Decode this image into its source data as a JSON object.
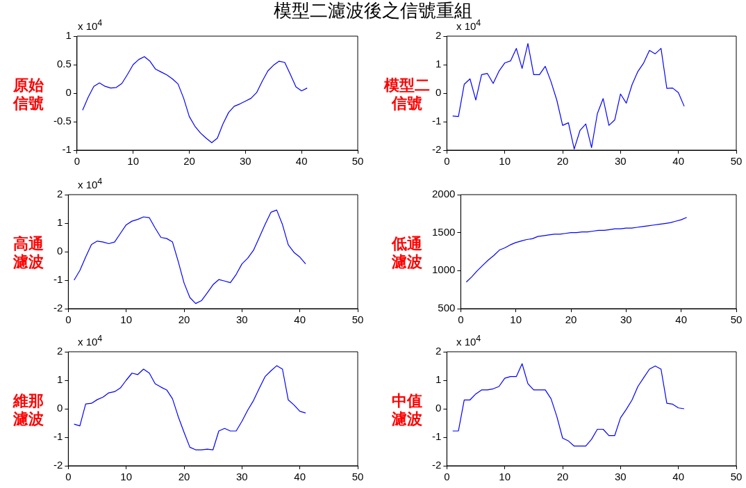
{
  "chart_data": [
    {
      "type": "line",
      "title": "模型二濾波後之信號重組",
      "ylabel": "原始信號",
      "annotations": [
        "x 10$^{4}$"
      ],
      "marker": "none",
      "legend": false,
      "x": [
        1,
        2,
        3,
        4,
        5,
        6,
        7,
        8,
        9,
        10,
        11,
        12,
        13,
        14,
        15,
        16,
        17,
        18,
        19,
        20,
        21,
        22,
        23,
        24,
        25,
        26,
        27,
        28,
        29,
        30,
        31,
        32,
        33,
        34,
        35,
        36,
        37,
        38,
        39,
        40,
        41
      ],
      "xlim": [
        0,
        50
      ],
      "xticks": [
        0,
        10,
        20,
        30,
        40,
        50
      ],
      "ylim": [
        -1,
        1
      ],
      "yticks": [
        -1,
        -0.5,
        0,
        0.5,
        1
      ],
      "series": [
        {
          "color": "#0000ff",
          "values": [
            -0.3,
            -0.07,
            0.12,
            0.18,
            0.12,
            0.09,
            0.1,
            0.17,
            0.33,
            0.5,
            0.59,
            0.64,
            0.56,
            0.42,
            0.37,
            0.32,
            0.25,
            0.16,
            -0.09,
            -0.41,
            -0.58,
            -0.7,
            -0.79,
            -0.87,
            -0.79,
            -0.54,
            -0.34,
            -0.23,
            -0.19,
            -0.14,
            -0.09,
            0.01,
            0.21,
            0.39,
            0.49,
            0.56,
            0.54,
            0.33,
            0.11,
            0.04,
            0.09
          ]
        }
      ]
    },
    {
      "type": "line",
      "ylabel": "模型二信號",
      "annotations": [
        "x 10$^{4}$"
      ],
      "marker": "none",
      "legend": false,
      "x": [
        1,
        2,
        3,
        4,
        5,
        6,
        7,
        8,
        9,
        10,
        11,
        12,
        13,
        14,
        15,
        16,
        17,
        18,
        19,
        20,
        21,
        22,
        23,
        24,
        25,
        26,
        27,
        28,
        29,
        30,
        31,
        32,
        33,
        34,
        35,
        36,
        37,
        38,
        39,
        40,
        41
      ],
      "xlim": [
        0,
        50
      ],
      "xticks": [
        0,
        10,
        20,
        30,
        40,
        50
      ],
      "ylim": [
        -2,
        2
      ],
      "yticks": [
        -2,
        -1,
        0,
        1,
        2
      ],
      "series": [
        {
          "color": "#0000ff",
          "values": [
            -0.8,
            -0.82,
            0.31,
            0.5,
            -0.24,
            0.65,
            0.69,
            0.34,
            0.77,
            1.06,
            1.13,
            1.57,
            0.87,
            1.74,
            0.65,
            0.65,
            0.94,
            0.4,
            -0.25,
            -1.13,
            -1.04,
            -1.96,
            -1.31,
            -1.08,
            -1.91,
            -0.72,
            -0.19,
            -1.13,
            -0.94,
            -0.03,
            -0.35,
            0.3,
            0.76,
            1.06,
            1.5,
            1.38,
            1.57,
            0.17,
            0.18,
            0.02,
            -0.46
          ]
        }
      ]
    },
    {
      "type": "line",
      "ylabel": "高通濾波",
      "annotations": [
        "x 10$^{4}$"
      ],
      "marker": "none",
      "legend": false,
      "x": [
        1,
        2,
        3,
        4,
        5,
        6,
        7,
        8,
        9,
        10,
        11,
        12,
        13,
        14,
        15,
        16,
        17,
        18,
        19,
        20,
        21,
        22,
        23,
        24,
        25,
        26,
        27,
        28,
        29,
        30,
        31,
        32,
        33,
        34,
        35,
        36,
        37,
        38,
        39,
        40,
        41
      ],
      "xlim": [
        0,
        50
      ],
      "xticks": [
        0,
        10,
        20,
        30,
        40,
        50
      ],
      "ylim": [
        -2,
        2
      ],
      "yticks": [
        -2,
        -1,
        0,
        1,
        2
      ],
      "series": [
        {
          "color": "#0000ff",
          "values": [
            -1.0,
            -0.66,
            -0.19,
            0.25,
            0.37,
            0.34,
            0.28,
            0.34,
            0.64,
            0.94,
            1.07,
            1.13,
            1.22,
            1.19,
            0.83,
            0.5,
            0.46,
            0.34,
            -0.35,
            -1.1,
            -1.61,
            -1.82,
            -1.72,
            -1.45,
            -1.16,
            -0.98,
            -1.03,
            -1.09,
            -0.8,
            -0.43,
            -0.23,
            0.05,
            0.5,
            0.96,
            1.38,
            1.46,
            0.95,
            0.24,
            -0.03,
            -0.19,
            -0.43
          ]
        }
      ]
    },
    {
      "type": "line",
      "ylabel": "低通濾波",
      "marker": "none",
      "legend": false,
      "x": [
        1,
        2,
        3,
        4,
        5,
        6,
        7,
        8,
        9,
        10,
        11,
        12,
        13,
        14,
        15,
        16,
        17,
        18,
        19,
        20,
        21,
        22,
        23,
        24,
        25,
        26,
        27,
        28,
        29,
        30,
        31,
        32,
        33,
        34,
        35,
        36,
        37,
        38,
        39,
        40,
        41
      ],
      "xlim": [
        0,
        50
      ],
      "xticks": [
        0,
        10,
        20,
        30,
        40,
        50
      ],
      "ylim": [
        500,
        2000
      ],
      "yticks": [
        500,
        1000,
        1500,
        2000
      ],
      "series": [
        {
          "color": "#0000ff",
          "values": [
            850,
            920,
            1000,
            1070,
            1140,
            1200,
            1270,
            1300,
            1340,
            1370,
            1390,
            1410,
            1420,
            1450,
            1460,
            1470,
            1480,
            1480,
            1490,
            1500,
            1500,
            1510,
            1510,
            1520,
            1530,
            1530,
            1540,
            1550,
            1550,
            1560,
            1560,
            1570,
            1580,
            1590,
            1600,
            1610,
            1620,
            1630,
            1650,
            1670,
            1700
          ]
        }
      ]
    },
    {
      "type": "line",
      "ylabel": "維那濾波",
      "annotations": [
        "x 10$^{4}$"
      ],
      "marker": "none",
      "legend": false,
      "x": [
        1,
        2,
        3,
        4,
        5,
        6,
        7,
        8,
        9,
        10,
        11,
        12,
        13,
        14,
        15,
        16,
        17,
        18,
        19,
        20,
        21,
        22,
        23,
        24,
        25,
        26,
        27,
        28,
        29,
        30,
        31,
        32,
        33,
        34,
        35,
        36,
        37,
        38,
        39,
        40,
        41
      ],
      "xlim": [
        0,
        50
      ],
      "xticks": [
        0,
        10,
        20,
        30,
        40,
        50
      ],
      "ylim": [
        -2,
        2
      ],
      "yticks": [
        -2,
        -1,
        0,
        1,
        2
      ],
      "series": [
        {
          "color": "#0000ff",
          "values": [
            -0.54,
            -0.6,
            0.17,
            0.19,
            0.32,
            0.41,
            0.56,
            0.6,
            0.73,
            1.0,
            1.25,
            1.2,
            1.39,
            1.25,
            0.88,
            0.76,
            0.66,
            0.35,
            -0.28,
            -0.83,
            -1.35,
            -1.44,
            -1.44,
            -1.42,
            -1.44,
            -0.78,
            -0.69,
            -0.78,
            -0.78,
            -0.44,
            -0.05,
            0.29,
            0.72,
            1.13,
            1.33,
            1.51,
            1.39,
            0.31,
            0.13,
            -0.09,
            -0.15
          ]
        }
      ]
    },
    {
      "type": "line",
      "ylabel": "中值濾波",
      "annotations": [
        "x 10$^{4}$"
      ],
      "marker": "none",
      "legend": false,
      "x": [
        1,
        2,
        3,
        4,
        5,
        6,
        7,
        8,
        9,
        10,
        11,
        12,
        13,
        14,
        15,
        16,
        17,
        18,
        19,
        20,
        21,
        22,
        23,
        24,
        25,
        26,
        27,
        28,
        29,
        30,
        31,
        32,
        33,
        34,
        35,
        36,
        37,
        38,
        39,
        40,
        41
      ],
      "xlim": [
        0,
        50
      ],
      "xticks": [
        0,
        10,
        20,
        30,
        40,
        50
      ],
      "ylim": [
        -2,
        2
      ],
      "yticks": [
        -2,
        -1,
        0,
        1,
        2
      ],
      "series": [
        {
          "color": "#0000ff",
          "values": [
            -0.78,
            -0.78,
            0.31,
            0.31,
            0.52,
            0.66,
            0.66,
            0.7,
            0.78,
            1.07,
            1.13,
            1.13,
            1.58,
            0.88,
            0.66,
            0.66,
            0.66,
            0.35,
            -0.27,
            -1.03,
            -1.13,
            -1.31,
            -1.31,
            -1.31,
            -1.07,
            -0.72,
            -0.72,
            -0.94,
            -0.94,
            -0.32,
            -0.02,
            0.31,
            0.78,
            1.09,
            1.39,
            1.5,
            1.39,
            0.19,
            0.16,
            0.03,
            0.0
          ]
        }
      ]
    }
  ]
}
